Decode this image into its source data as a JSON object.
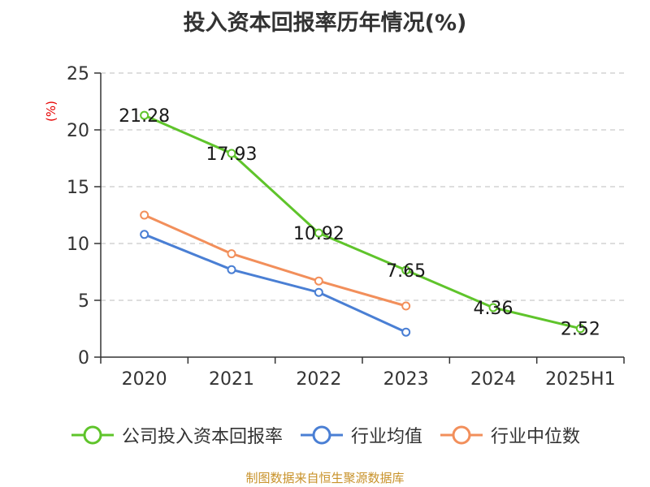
{
  "chart_data": {
    "type": "line",
    "title": "投入资本回报率历年情况(%)",
    "unit_label": "(%)",
    "categories": [
      "2020",
      "2021",
      "2022",
      "2023",
      "2024",
      "2025H1"
    ],
    "ylim": [
      0,
      25
    ],
    "yticks": [
      0,
      5,
      10,
      15,
      20,
      25
    ],
    "grid": true,
    "legend_position": "bottom",
    "series": [
      {
        "name": "公司投入资本回报率",
        "color": "#5fc42b",
        "values": [
          21.28,
          17.93,
          10.92,
          7.65,
          4.36,
          2.52
        ],
        "labels": [
          "21.28",
          "17.93",
          "10.92",
          "7.65",
          "4.36",
          "2.52"
        ]
      },
      {
        "name": "行业均值",
        "color": "#4a7fd4",
        "values": [
          10.8,
          7.7,
          5.7,
          2.2,
          null,
          null
        ]
      },
      {
        "name": "行业中位数",
        "color": "#f28f5b",
        "values": [
          12.5,
          9.1,
          6.7,
          4.5,
          null,
          null
        ]
      }
    ]
  },
  "footer": {
    "source": "制图数据来自恒生聚源数据库"
  }
}
